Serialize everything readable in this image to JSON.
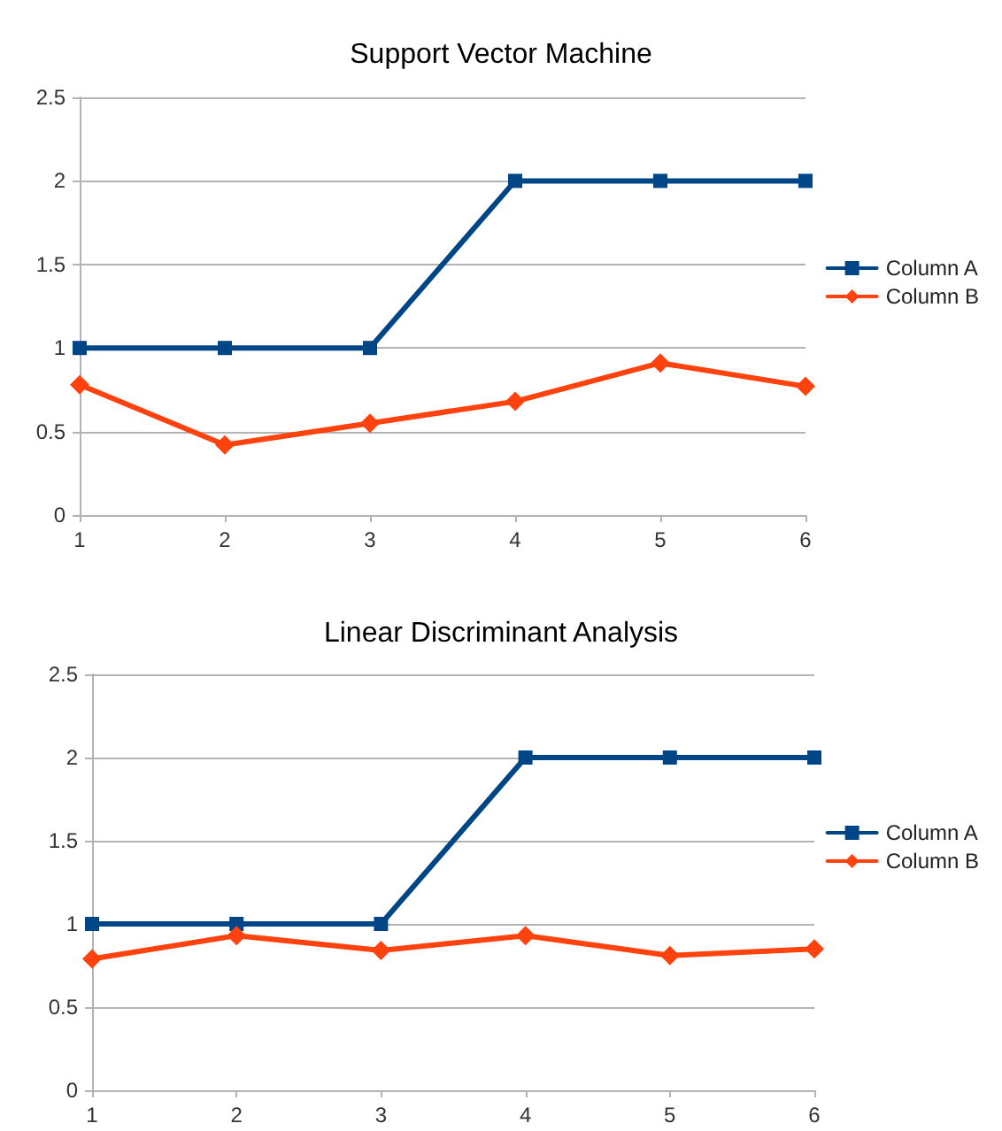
{
  "chart_data": [
    {
      "type": "line",
      "title": "Support Vector Machine",
      "x": [
        1,
        2,
        3,
        4,
        5,
        6
      ],
      "xlim": [
        1,
        6
      ],
      "xticks": [
        1,
        2,
        3,
        4,
        5,
        6
      ],
      "ylim": [
        0,
        2.5
      ],
      "yticks": [
        0,
        0.5,
        1,
        1.5,
        2,
        2.5
      ],
      "grid": "y",
      "legend": "right",
      "series": [
        {
          "name": "Column A",
          "color": "#004586",
          "marker": "square",
          "values": [
            1,
            1,
            1,
            2,
            2,
            2
          ]
        },
        {
          "name": "Column B",
          "color": "#ff420e",
          "marker": "diamond",
          "values": [
            0.78,
            0.42,
            0.55,
            0.68,
            0.91,
            0.77
          ]
        }
      ]
    },
    {
      "type": "line",
      "title": "Linear Discriminant Analysis",
      "x": [
        1,
        2,
        3,
        4,
        5,
        6
      ],
      "xlim": [
        1,
        6
      ],
      "xticks": [
        1,
        2,
        3,
        4,
        5,
        6
      ],
      "ylim": [
        0,
        2.5
      ],
      "yticks": [
        0,
        0.5,
        1,
        1.5,
        2,
        2.5
      ],
      "grid": "y",
      "legend": "right",
      "series": [
        {
          "name": "Column A",
          "color": "#004586",
          "marker": "square",
          "values": [
            1,
            1,
            1,
            2,
            2,
            2
          ]
        },
        {
          "name": "Column B",
          "color": "#ff420e",
          "marker": "diamond",
          "values": [
            0.79,
            0.93,
            0.84,
            0.93,
            0.81,
            0.85
          ]
        }
      ]
    }
  ]
}
